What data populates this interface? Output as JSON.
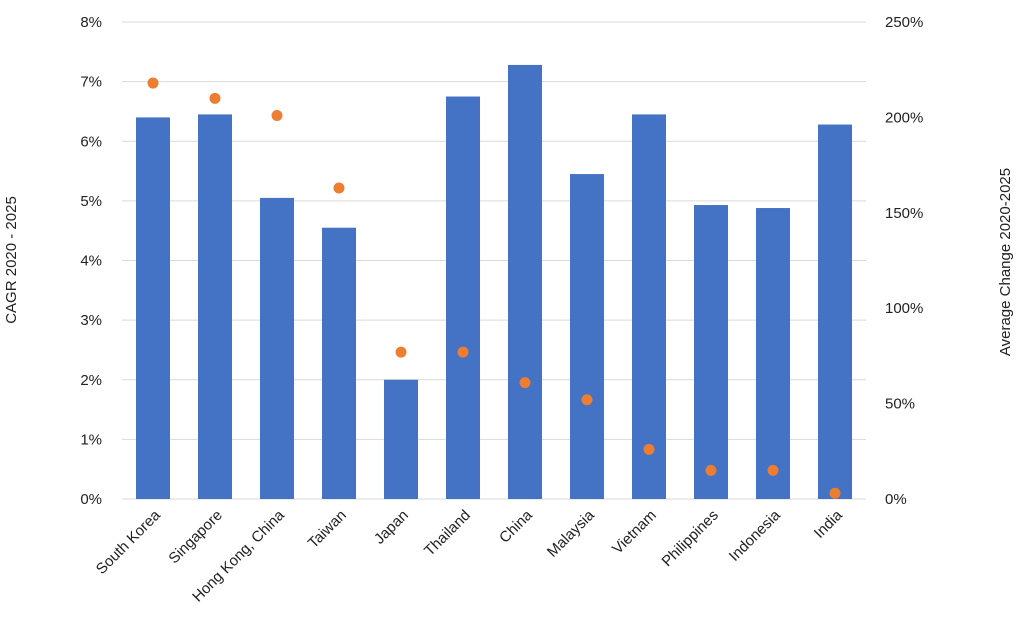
{
  "chart_data": {
    "type": "bar",
    "categories": [
      "South Korea",
      "Singapore",
      "Hong Kong, China",
      "Taiwan",
      "Japan",
      "Thailand",
      "China",
      "Malaysia",
      "Vietnam",
      "Philippines",
      "Indonesia",
      "India"
    ],
    "series": [
      {
        "type": "bar",
        "axis": "left",
        "color": "#4472c4",
        "values": [
          6.4,
          6.45,
          5.05,
          4.55,
          2.0,
          6.75,
          7.28,
          5.45,
          6.45,
          4.93,
          4.88,
          6.28
        ]
      },
      {
        "type": "scatter",
        "axis": "right",
        "color": "#ed7d31",
        "values": [
          218,
          210,
          201,
          163,
          77,
          77,
          61,
          52,
          26,
          15,
          15,
          3
        ]
      }
    ],
    "ylabel": "CAGR 2020 - 2025",
    "ylabel_right": "Average Change 2020-2025",
    "ylim": [
      0,
      8
    ],
    "ylim_right": [
      0,
      250
    ],
    "yticks": [
      "0%",
      "1%",
      "2%",
      "3%",
      "4%",
      "5%",
      "6%",
      "7%",
      "8%"
    ],
    "yticks_right": [
      "0%",
      "50%",
      "100%",
      "150%",
      "200%",
      "250%"
    ],
    "grid": true,
    "legend": "none"
  }
}
